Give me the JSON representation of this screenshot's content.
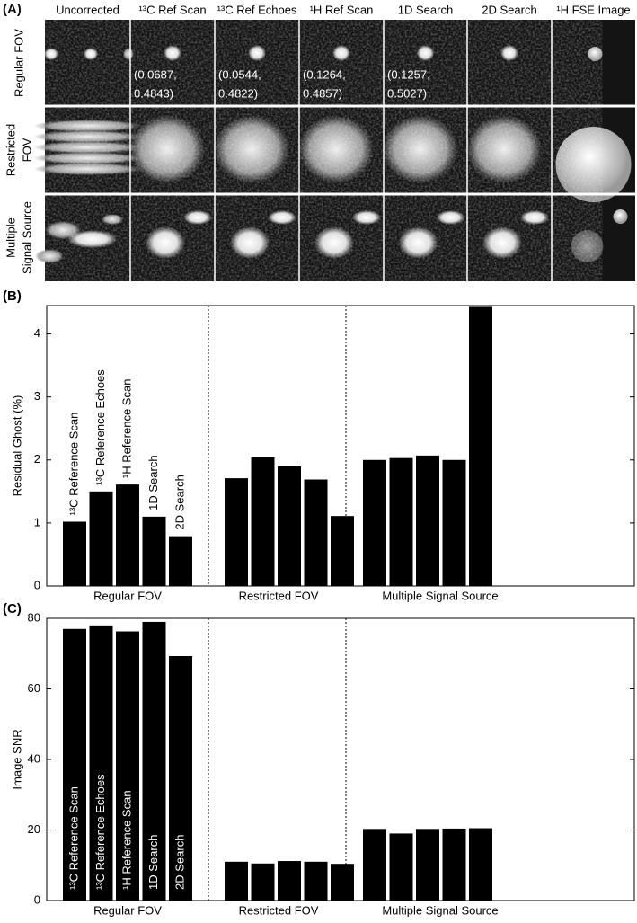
{
  "panel_a": {
    "label": "(A)",
    "columns": [
      "Uncorrected",
      "¹³C Ref Scan",
      "¹³C  Ref Echoes",
      "¹H Ref Scan",
      "1D Search",
      "2D Search",
      "¹H FSE Image"
    ],
    "rows": [
      [
        "Regular FOV"
      ],
      [
        "Restricted",
        "FOV"
      ],
      [
        "Multiple",
        "Signal Source"
      ]
    ],
    "annotations": [
      [
        "(0.0687,",
        "0.4843)"
      ],
      [
        "(0.0544,",
        "0.4822)"
      ],
      [
        "(0.1264,",
        "0.4857)"
      ],
      [
        "(0.1257,",
        "0.5027)"
      ]
    ]
  },
  "chart_data": [
    {
      "type": "bar",
      "panel_label": "(B)",
      "ylabel": "Residual Ghost (%)",
      "categories": [
        "Regular FOV",
        "Restricted FOV",
        "Multiple Signal Source"
      ],
      "series": [
        {
          "name": "¹³C Reference Scan",
          "color": "#000000",
          "values": [
            1.02,
            1.71,
            2.0
          ]
        },
        {
          "name": "¹³C Reference Echoes",
          "color": "#000000",
          "values": [
            1.5,
            2.04,
            2.03
          ]
        },
        {
          "name": "¹H Reference Scan",
          "color": "#000000",
          "values": [
            1.61,
            1.9,
            2.07
          ]
        },
        {
          "name": "1D Search",
          "color": "#000000",
          "values": [
            1.1,
            1.69,
            2.0
          ]
        },
        {
          "name": "2D Search",
          "color": "#000000",
          "values": [
            0.79,
            1.11,
            4.43
          ]
        }
      ],
      "ylim": [
        0,
        4.45
      ],
      "yticks": [
        0,
        1,
        2,
        3,
        4
      ]
    },
    {
      "type": "bar",
      "panel_label": "(C)",
      "ylabel": "Image SNR",
      "categories": [
        "Regular FOV",
        "Restricted FOV",
        "Multiple Signal Source"
      ],
      "series": [
        {
          "name": "¹³C Reference Scan",
          "color": "#000000",
          "values": [
            77,
            11,
            20.3
          ]
        },
        {
          "name": "¹³C Reference Echoes",
          "color": "#000000",
          "values": [
            78,
            10.5,
            19
          ]
        },
        {
          "name": "¹H Reference Scan",
          "color": "#000000",
          "values": [
            76.3,
            11.2,
            20.3
          ]
        },
        {
          "name": "1D Search",
          "color": "#000000",
          "values": [
            79,
            11,
            20.4
          ]
        },
        {
          "name": "2D Search",
          "color": "#000000",
          "values": [
            69.3,
            10.4,
            20.5
          ]
        }
      ],
      "ylim": [
        0,
        80
      ],
      "yticks": [
        0,
        20,
        40,
        60,
        80
      ]
    }
  ]
}
